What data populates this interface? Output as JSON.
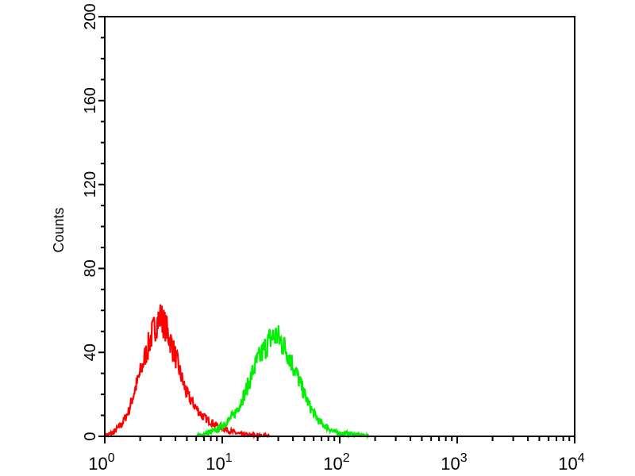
{
  "chart_data": {
    "type": "line",
    "title": "",
    "xlabel": "",
    "ylabel": "Counts",
    "xscale": "log",
    "xlim": [
      1,
      10000
    ],
    "ylim": [
      0,
      200
    ],
    "grid": false,
    "legend": "none",
    "x_ticks": [
      {
        "base": "10",
        "exp": "0"
      },
      {
        "base": "10",
        "exp": "1"
      },
      {
        "base": "10",
        "exp": "2"
      },
      {
        "base": "10",
        "exp": "3"
      },
      {
        "base": "10",
        "exp": "4"
      }
    ],
    "y_ticks": [
      "0",
      "40",
      "80",
      "120",
      "160",
      "200"
    ],
    "series": [
      {
        "color": "#ff0000",
        "x": [
          1.0,
          1.2,
          1.4,
          1.6,
          1.8,
          2.0,
          2.2,
          2.5,
          2.8,
          3.0,
          3.3,
          3.6,
          4.0,
          4.5,
          5.0,
          5.6,
          6.3,
          7.0,
          8.0,
          9.0,
          10,
          11,
          12.5,
          14,
          16,
          20,
          25
        ],
        "y": [
          0,
          2,
          6,
          12,
          22,
          30,
          38,
          48,
          55,
          57,
          52,
          46,
          38,
          28,
          20,
          16,
          12,
          9,
          7,
          5,
          4,
          3,
          2,
          1,
          0.5,
          0.3,
          0
        ]
      },
      {
        "color": "#00ee00",
        "x": [
          6,
          7,
          8,
          9,
          10,
          11,
          12.5,
          14,
          16,
          18,
          20,
          23,
          26,
          29,
          32,
          36,
          40,
          45,
          50,
          56,
          63,
          70,
          80,
          90,
          100,
          125,
          150,
          180
        ],
        "y": [
          0,
          1,
          2,
          3,
          5,
          7,
          10,
          15,
          22,
          30,
          36,
          42,
          47,
          48,
          45,
          40,
          34,
          27,
          20,
          14,
          9,
          6,
          4,
          2,
          1.5,
          1,
          0.5,
          0
        ]
      }
    ]
  }
}
